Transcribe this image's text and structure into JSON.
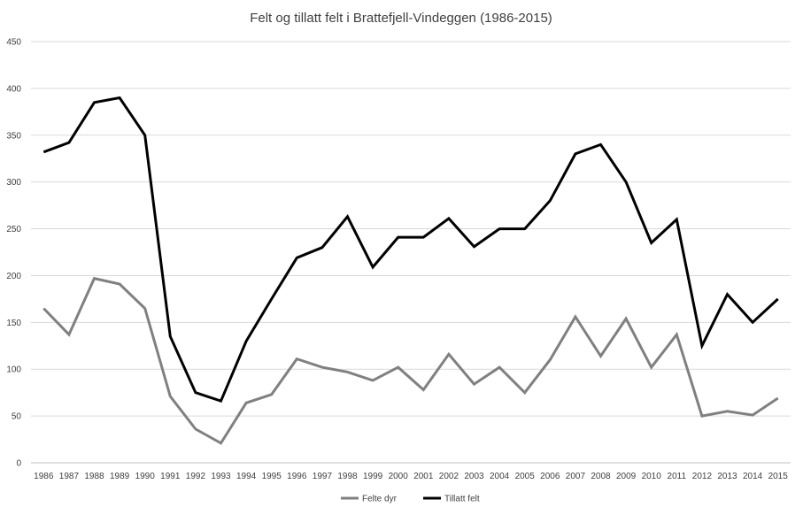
{
  "chart_data": {
    "type": "line",
    "title": "Felt og tillatt  felt i Brattefjell-Vindeggen (1986-2015)",
    "xlabel": "",
    "ylabel": "",
    "ylim": [
      0,
      450
    ],
    "yticks": [
      0,
      50,
      100,
      150,
      200,
      250,
      300,
      350,
      400,
      450
    ],
    "grid": true,
    "legend_position": "bottom",
    "categories": [
      "1986",
      "1987",
      "1988",
      "1989",
      "1990",
      "1991",
      "1992",
      "1993",
      "1994",
      "1995",
      "1996",
      "1997",
      "1998",
      "1999",
      "2000",
      "2001",
      "2002",
      "2003",
      "2004",
      "2005",
      "2006",
      "2007",
      "2008",
      "2009",
      "2010",
      "2011",
      "2012",
      "2013",
      "2014",
      "2015"
    ],
    "series": [
      {
        "name": "Felte dyr",
        "color": "#808080",
        "values": [
          165,
          137,
          197,
          191,
          165,
          71,
          36,
          21,
          64,
          73,
          111,
          102,
          97,
          88,
          102,
          78,
          116,
          84,
          102,
          75,
          110,
          156,
          114,
          154,
          102,
          137,
          50,
          55,
          51,
          69
        ]
      },
      {
        "name": "Tillatt felt",
        "color": "#000000",
        "values": [
          332,
          342,
          385,
          390,
          350,
          135,
          75,
          66,
          130,
          175,
          219,
          230,
          263,
          209,
          241,
          241,
          261,
          231,
          250,
          250,
          280,
          330,
          340,
          300,
          235,
          260,
          125,
          180,
          150,
          175
        ]
      }
    ]
  }
}
